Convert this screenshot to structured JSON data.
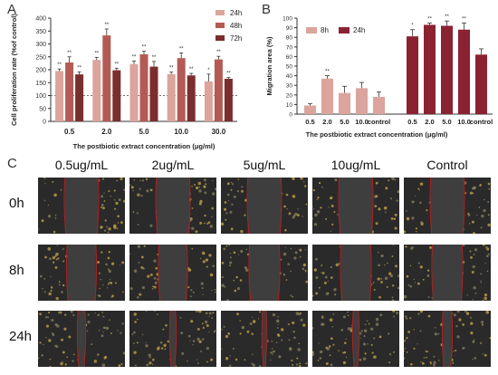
{
  "panel_letters": {
    "a": "A",
    "b": "B",
    "c": "C"
  },
  "panel_c": {
    "columns": [
      "0.5ug/mL",
      "2ug/mL",
      "5ug/mL",
      "10ug/mL",
      "Control"
    ],
    "rows": [
      "0h",
      "8h",
      "24h"
    ],
    "gap_fraction": {
      "0h": [
        0.38,
        0.38,
        0.38,
        0.38,
        0.38
      ],
      "8h": [
        0.33,
        0.32,
        0.34,
        0.34,
        0.34
      ],
      "24h": [
        0.08,
        0.06,
        0.04,
        0.06,
        0.1
      ]
    },
    "colors": {
      "background": "#2a2a2a",
      "gap": "#3e3e3e",
      "edge_line": "#b02020",
      "cell": "#c8a84a"
    }
  },
  "chart_data": [
    {
      "id": "A",
      "type": "bar",
      "categories": [
        "0.5",
        "2.0",
        "5.0",
        "10.0",
        "30.0"
      ],
      "xlabel": "The postbiotic extract concentration (μg/ml)",
      "ylabel": "Cell proliferation rate (%of control)",
      "ylim": [
        0,
        400
      ],
      "yticks": [
        "0",
        "50",
        "100",
        "150",
        "200",
        "250",
        "300",
        "350",
        "400"
      ],
      "grid": false,
      "legend_position": "top-right",
      "reference_line": 100,
      "series": [
        {
          "name": "24h",
          "color": "#dba49c",
          "values": [
            195,
            238,
            222,
            183,
            155
          ],
          "errors": [
            8,
            10,
            12,
            8,
            28
          ],
          "marks": [
            "**",
            "**",
            "**",
            "**",
            "*"
          ]
        },
        {
          "name": "48h",
          "color": "#b45a55",
          "values": [
            228,
            333,
            260,
            245,
            240
          ],
          "errors": [
            22,
            25,
            12,
            20,
            12
          ],
          "marks": [
            "**",
            "**",
            "**",
            "**",
            "**"
          ]
        },
        {
          "name": "72h",
          "color": "#7a2e2e",
          "values": [
            182,
            198,
            212,
            178,
            165
          ],
          "errors": [
            10,
            8,
            20,
            8,
            5
          ],
          "marks": [
            "**",
            "**",
            "**",
            "**",
            "**"
          ]
        }
      ]
    },
    {
      "id": "B",
      "type": "bar",
      "groups": [
        {
          "name": "8h",
          "color": "#dba49c",
          "categories": [
            "0.5",
            "2.0",
            "5.0",
            "10.0"
          ],
          "values": [
            9,
            37,
            22,
            27
          ],
          "errors": [
            2,
            3,
            7,
            6
          ],
          "marks": [
            "",
            "**",
            "",
            ""
          ]
        },
        {
          "name": "24h",
          "color": "#8b2232",
          "categories": [
            "0.5",
            "2.0",
            "5.0",
            "10.0",
            "control"
          ],
          "values": [
            81,
            93,
            92,
            88,
            62
          ],
          "errors": [
            7,
            2,
            5,
            7,
            6
          ],
          "marks": [
            "*",
            "**",
            "**",
            "**",
            ""
          ]
        }
      ],
      "extra_categories": [
        {
          "label": "control",
          "value": 18,
          "error": 5,
          "group": "8h"
        }
      ],
      "xlabel": "The postbiotic extract concentration (μg/ml)",
      "ylabel": "Migration area (%)",
      "ylim": [
        0,
        100
      ],
      "yticks": [
        "0",
        "10",
        "20",
        "30",
        "40",
        "50",
        "60",
        "70",
        "80",
        "90",
        "100"
      ],
      "grid": false,
      "legend_position": "top-left"
    }
  ]
}
